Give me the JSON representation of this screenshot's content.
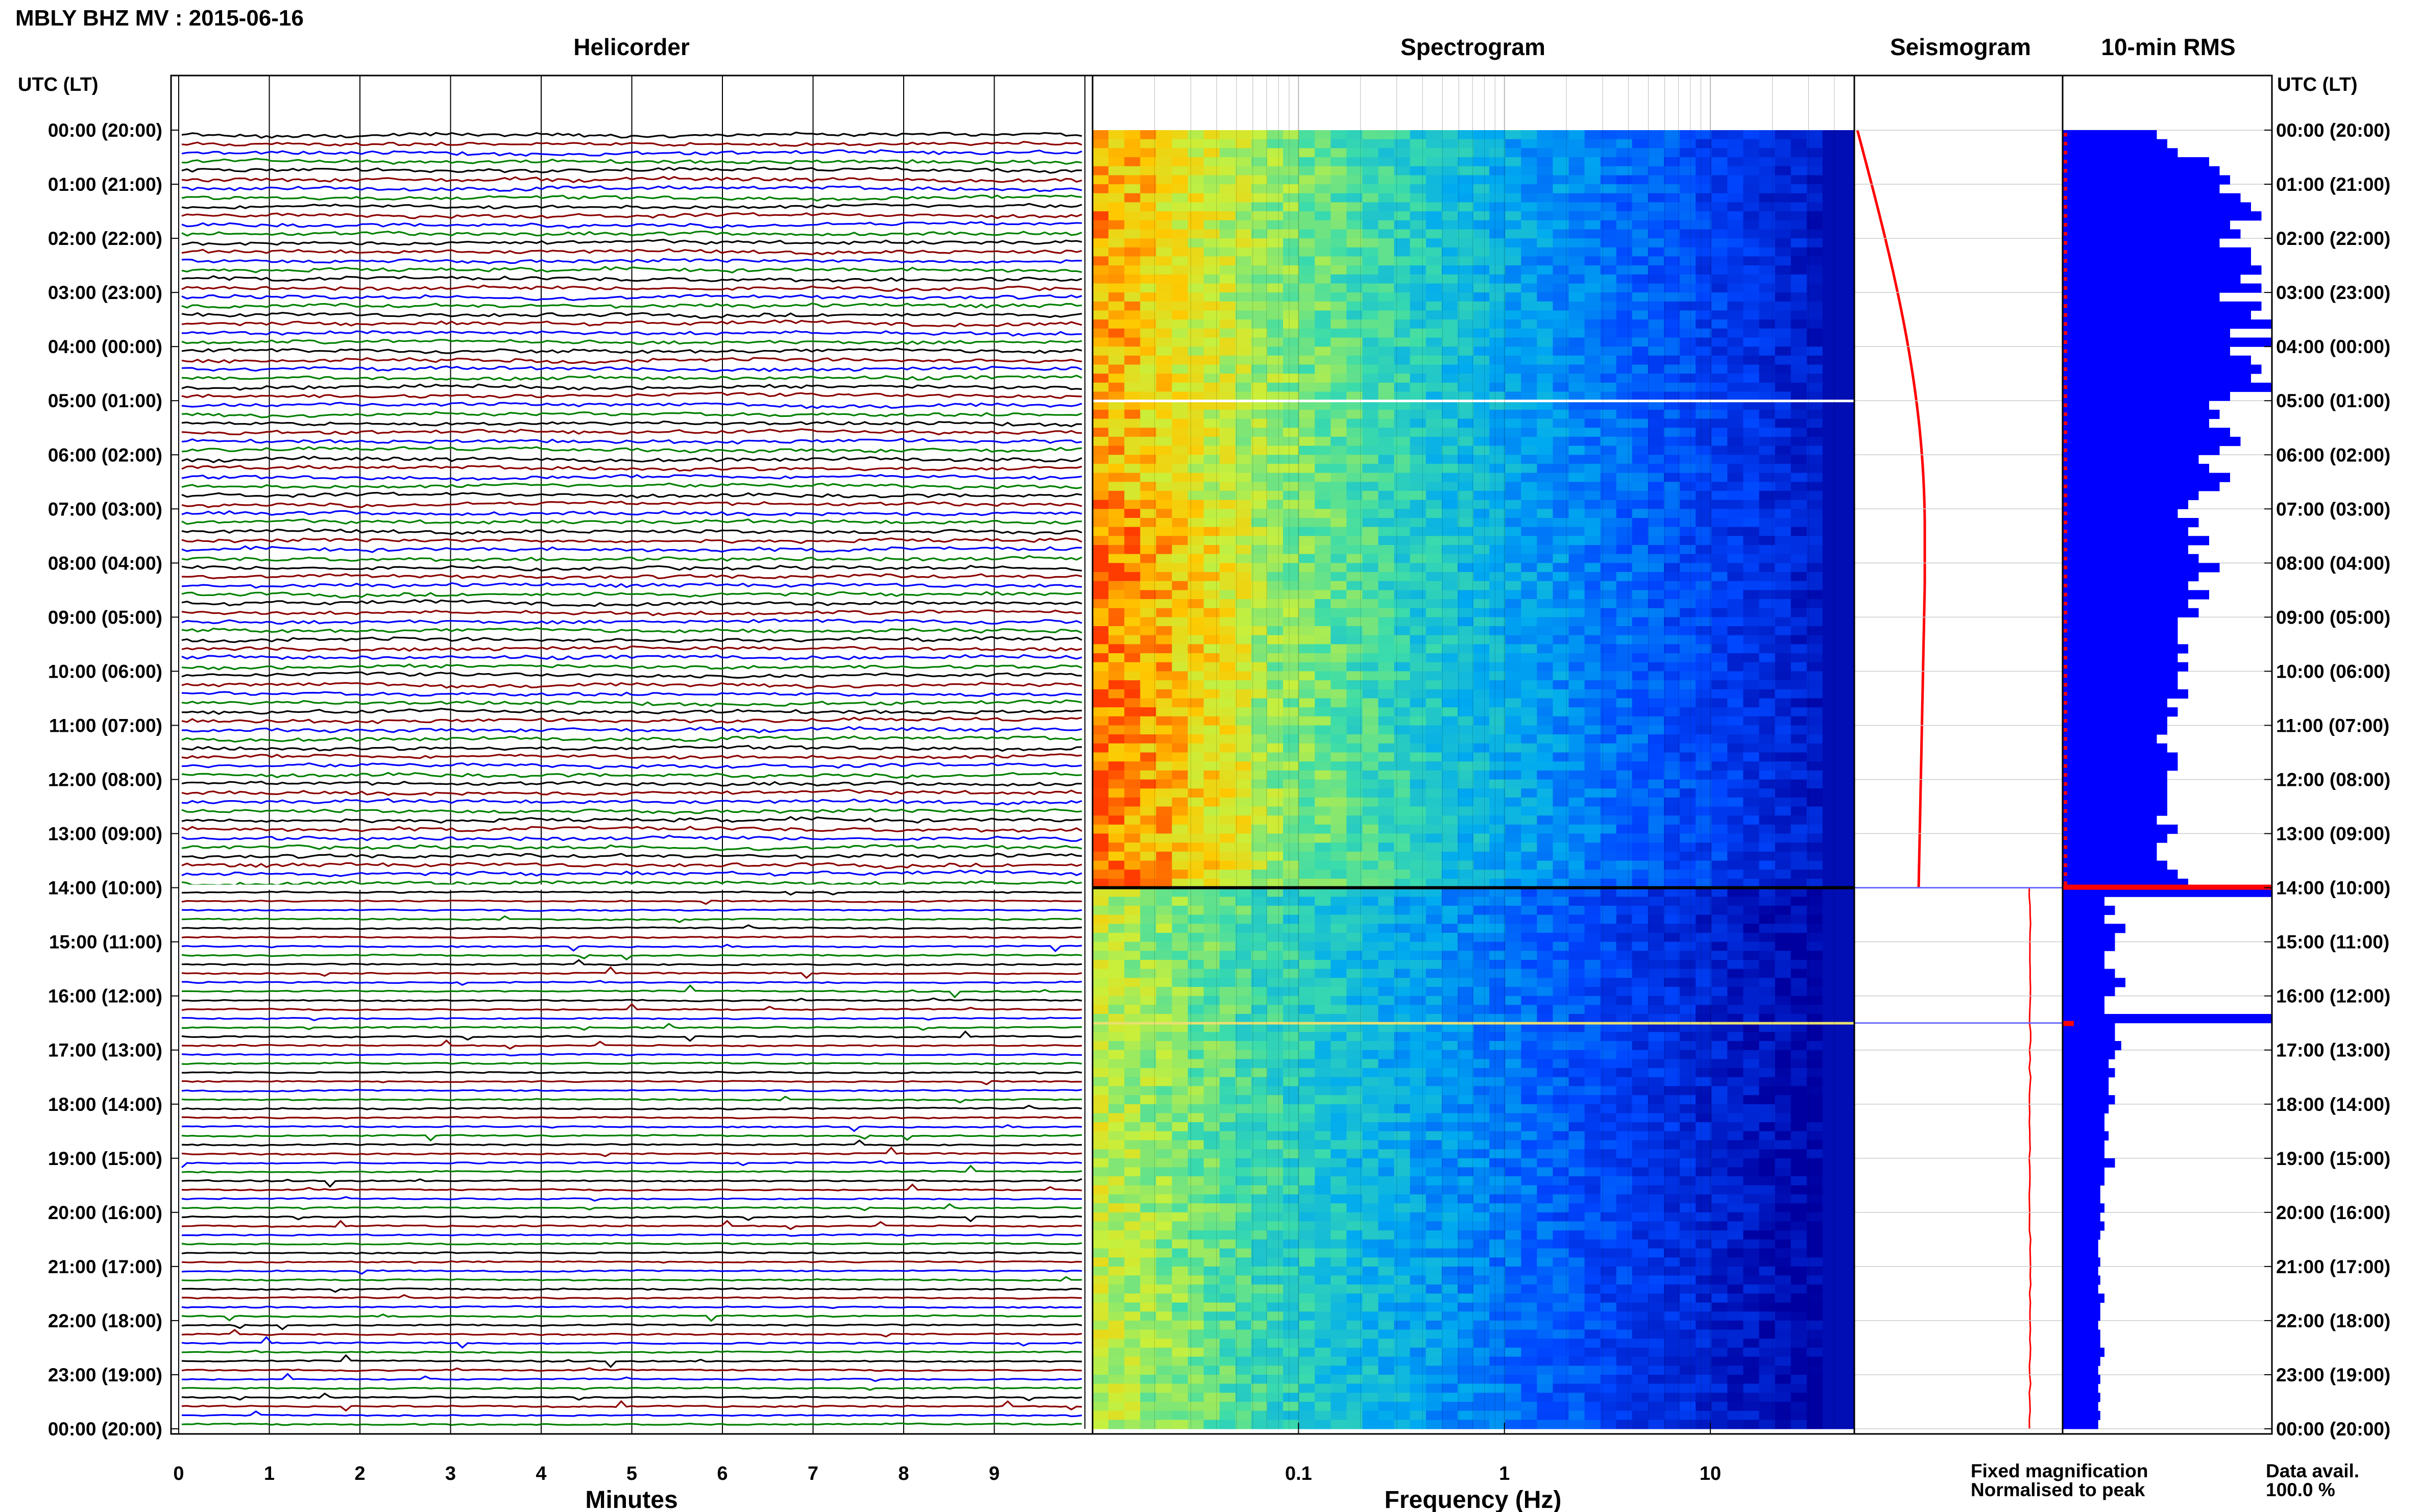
{
  "header": {
    "title": "MBLY BHZ MV : 2015-06-16",
    "utc_left": "UTC (LT)",
    "utc_right": "UTC (LT)"
  },
  "panels": {
    "helicorder": "Helicorder",
    "spectrogram": "Spectrogram",
    "seismogram": "Seismogram",
    "rms": "10-min RMS"
  },
  "axes": {
    "helicorder_xlabel": "Minutes",
    "helicorder_ticks": [
      "0",
      "1",
      "2",
      "3",
      "4",
      "5",
      "6",
      "7",
      "8",
      "9"
    ],
    "spectrogram_xlabel": "Frequency (Hz)",
    "spectrogram_ticks": [
      "0.1",
      "1",
      "10"
    ]
  },
  "time_labels": [
    "00:00 (20:00)",
    "01:00 (21:00)",
    "02:00 (22:00)",
    "03:00 (23:00)",
    "04:00 (00:00)",
    "05:00 (01:00)",
    "06:00 (02:00)",
    "07:00 (03:00)",
    "08:00 (04:00)",
    "09:00 (05:00)",
    "10:00 (06:00)",
    "11:00 (07:00)",
    "12:00 (08:00)",
    "13:00 (09:00)",
    "14:00 (10:00)",
    "15:00 (11:00)",
    "16:00 (12:00)",
    "17:00 (13:00)",
    "18:00 (14:00)",
    "19:00 (15:00)",
    "20:00 (16:00)",
    "21:00 (17:00)",
    "22:00 (18:00)",
    "23:00 (19:00)",
    "00:00 (20:00)"
  ],
  "legend": {
    "fixed": "Fixed magnification",
    "normalised": "Normalised to peak",
    "fixed_color": "#0000ff",
    "normalised_color": "#ff0000"
  },
  "data_avail": {
    "label": "Data avail.",
    "value": "100.0 %"
  },
  "colors": {
    "trace_cycle": [
      "#000000",
      "#8b0000",
      "#0000ff",
      "#008000"
    ],
    "rms_bar": "#0000ff",
    "rms_marker": "#ff0000",
    "seismogram_line": "#ff0000"
  },
  "chart_data": [
    {
      "type": "line",
      "title": "Helicorder",
      "xlabel": "Minutes",
      "xlim": [
        0,
        10
      ],
      "rows_per_hour": 6,
      "hours": 24
    },
    {
      "type": "heatmap",
      "title": "Spectrogram",
      "xlabel": "Frequency (Hz)",
      "x_scale": "log",
      "xlim": [
        0.01,
        50
      ]
    },
    {
      "type": "line",
      "title": "Seismogram"
    },
    {
      "type": "bar",
      "title": "10-min RMS",
      "relative_values": [
        0.45,
        0.5,
        0.55,
        0.7,
        0.75,
        0.8,
        0.75,
        0.85,
        0.9,
        0.95,
        0.8,
        0.85,
        0.75,
        0.9,
        0.9,
        0.95,
        0.85,
        0.95,
        0.75,
        0.95,
        0.9,
        1.0,
        0.8,
        1.0,
        0.8,
        0.9,
        0.95,
        0.9,
        1.0,
        0.8,
        0.7,
        0.75,
        0.7,
        0.8,
        0.85,
        0.75,
        0.65,
        0.7,
        0.8,
        0.75,
        0.65,
        0.6,
        0.55,
        0.65,
        0.6,
        0.7,
        0.6,
        0.65,
        0.75,
        0.65,
        0.6,
        0.7,
        0.6,
        0.65,
        0.55,
        0.55,
        0.55,
        0.6,
        0.55,
        0.6,
        0.55,
        0.55,
        0.6,
        0.5,
        0.55,
        0.5,
        0.5,
        0.45,
        0.5,
        0.55,
        0.55,
        0.5,
        0.5,
        0.5,
        0.5,
        0.5,
        0.45,
        0.55,
        0.5,
        0.45,
        0.45,
        0.5,
        0.55,
        0.6,
        1.0,
        0.2,
        0.25,
        0.2,
        0.3,
        0.25,
        0.25,
        0.2,
        0.2,
        0.25,
        0.3,
        0.25,
        0.2,
        0.2,
        1.0,
        0.25,
        0.25,
        0.28,
        0.25,
        0.22,
        0.25,
        0.22,
        0.22,
        0.25,
        0.22,
        0.2,
        0.2,
        0.22,
        0.2,
        0.2,
        0.25,
        0.2,
        0.2,
        0.18,
        0.18,
        0.2,
        0.18,
        0.2,
        0.18,
        0.17,
        0.17,
        0.18,
        0.17,
        0.18,
        0.17,
        0.2,
        0.18,
        0.18,
        0.17,
        0.18,
        0.18,
        0.2,
        0.18,
        0.17,
        0.18,
        0.17,
        0.18,
        0.17,
        0.18,
        0.17
      ]
    }
  ]
}
